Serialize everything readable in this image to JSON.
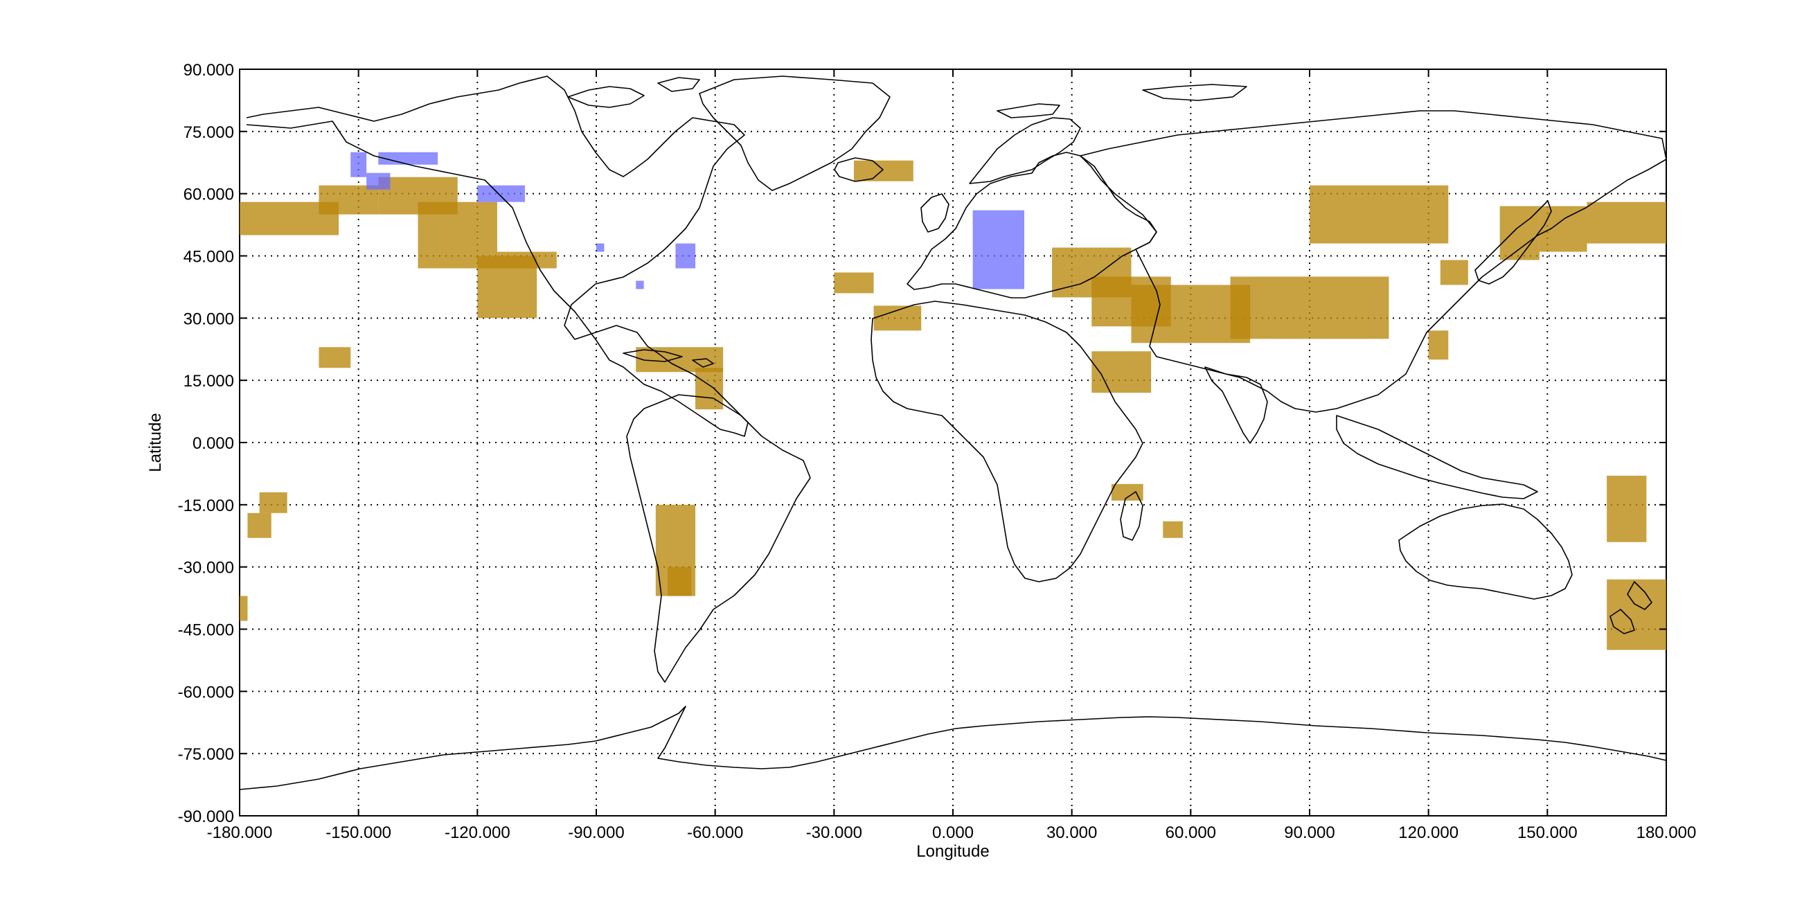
{
  "figure": {
    "xlabel": "Longitude",
    "ylabel": "Latitude",
    "xlim": [
      -180,
      180
    ],
    "ylim": [
      -90,
      90
    ],
    "grid": true,
    "grid_style": "dotted",
    "x_ticks": [
      "-180.000",
      "-150.000",
      "-120.000",
      "-90.000",
      "-60.000",
      "-30.000",
      "0.000",
      "30.000",
      "60.000",
      "90.000",
      "120.000",
      "150.000",
      "180.000"
    ],
    "y_ticks": [
      "90.000",
      "75.000",
      "60.000",
      "45.000",
      "30.000",
      "15.000",
      "0.000",
      "-15.000",
      "-30.000",
      "-45.000",
      "-60.000",
      "-75.000",
      "-90.000"
    ]
  },
  "colors": {
    "mountain_regions": "#b8860b",
    "glacier_regions": "#6b6bff",
    "coastline": "#000000"
  },
  "chart_data": {
    "type": "map",
    "layers": [
      {
        "kind": "gold",
        "regions": [
          {
            "lon": [
              -180,
              -155
            ],
            "lat": [
              50,
              58
            ]
          },
          {
            "lon": [
              -160,
              -145
            ],
            "lat": [
              55,
              62
            ]
          },
          {
            "lon": [
              -145,
              -125
            ],
            "lat": [
              55,
              64
            ]
          },
          {
            "lon": [
              -135,
              -115
            ],
            "lat": [
              42,
              58
            ]
          },
          {
            "lon": [
              -120,
              -105
            ],
            "lat": [
              30,
              45
            ]
          },
          {
            "lon": [
              -115,
              -100
            ],
            "lat": [
              42,
              46
            ]
          },
          {
            "lon": [
              -160,
              -152
            ],
            "lat": [
              18,
              23
            ]
          },
          {
            "lon": [
              -25,
              -10
            ],
            "lat": [
              63,
              68
            ]
          },
          {
            "lon": [
              -30,
              -20
            ],
            "lat": [
              36,
              41
            ]
          },
          {
            "lon": [
              -20,
              -8
            ],
            "lat": [
              27,
              33
            ]
          },
          {
            "lon": [
              -80,
              -58
            ],
            "lat": [
              17,
              23
            ]
          },
          {
            "lon": [
              -65,
              -58
            ],
            "lat": [
              8,
              18
            ]
          },
          {
            "lon": [
              -75,
              -65
            ],
            "lat": [
              -37,
              -15
            ]
          },
          {
            "lon": [
              -72,
              -66
            ],
            "lat": [
              -37,
              -30
            ]
          },
          {
            "lon": [
              -175,
              -168
            ],
            "lat": [
              -17,
              -12
            ]
          },
          {
            "lon": [
              -178,
              -172
            ],
            "lat": [
              -23,
              -17
            ]
          },
          {
            "lon": [
              -180,
              -178
            ],
            "lat": [
              -43,
              -37
            ]
          },
          {
            "lon": [
              25,
              45
            ],
            "lat": [
              35,
              47
            ]
          },
          {
            "lon": [
              35,
              55
            ],
            "lat": [
              28,
              40
            ]
          },
          {
            "lon": [
              45,
              75
            ],
            "lat": [
              24,
              38
            ]
          },
          {
            "lon": [
              70,
              110
            ],
            "lat": [
              25,
              40
            ]
          },
          {
            "lon": [
              90,
              125
            ],
            "lat": [
              48,
              62
            ]
          },
          {
            "lon": [
              35,
              50
            ],
            "lat": [
              12,
              22
            ]
          },
          {
            "lon": [
              40,
              48
            ],
            "lat": [
              -14,
              -10
            ]
          },
          {
            "lon": [
              53,
              58
            ],
            "lat": [
              -23,
              -19
            ]
          },
          {
            "lon": [
              123,
              130
            ],
            "lat": [
              38,
              44
            ]
          },
          {
            "lon": [
              120,
              125
            ],
            "lat": [
              20,
              27
            ]
          },
          {
            "lon": [
              138,
              148
            ],
            "lat": [
              44,
              57
            ]
          },
          {
            "lon": [
              148,
              160
            ],
            "lat": [
              46,
              57
            ]
          },
          {
            "lon": [
              160,
              180
            ],
            "lat": [
              48,
              58
            ]
          },
          {
            "lon": [
              165,
              175
            ],
            "lat": [
              -24,
              -8
            ]
          },
          {
            "lon": [
              165,
              180
            ],
            "lat": [
              -50,
              -33
            ]
          }
        ]
      },
      {
        "kind": "blue",
        "regions": [
          {
            "lon": [
              -152,
              -148
            ],
            "lat": [
              64,
              70
            ]
          },
          {
            "lon": [
              -145,
              -130
            ],
            "lat": [
              67,
              70
            ]
          },
          {
            "lon": [
              -148,
              -142
            ],
            "lat": [
              61,
              65
            ]
          },
          {
            "lon": [
              -120,
              -108
            ],
            "lat": [
              58,
              62
            ]
          },
          {
            "lon": [
              5,
              18
            ],
            "lat": [
              37,
              56
            ]
          },
          {
            "lon": [
              -90,
              -88
            ],
            "lat": [
              46,
              48
            ]
          },
          {
            "lon": [
              -70,
              -65
            ],
            "lat": [
              42,
              48
            ]
          },
          {
            "lon": [
              -80,
              -78
            ],
            "lat": [
              37,
              39
            ]
          }
        ]
      }
    ]
  }
}
